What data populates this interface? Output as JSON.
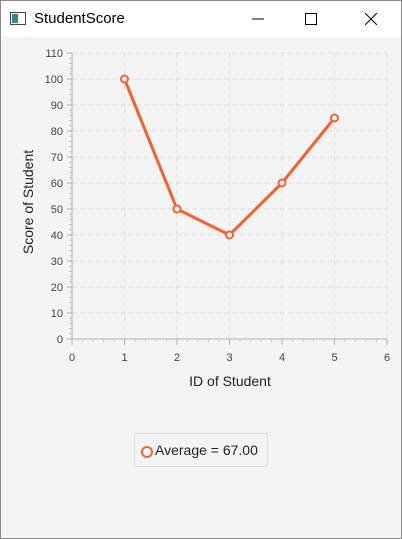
{
  "window": {
    "title": "StudentScore",
    "controls": [
      "minimize",
      "maximize",
      "close"
    ]
  },
  "chart_data": {
    "type": "line",
    "xlabel": "ID of Student",
    "ylabel": "Score of Student",
    "xlim": [
      0,
      6
    ],
    "ylim": [
      0,
      110
    ],
    "x_ticks": [
      "0",
      "1",
      "2",
      "3",
      "4",
      "5",
      "6"
    ],
    "y_ticks": [
      "0",
      "10",
      "20",
      "30",
      "40",
      "50",
      "60",
      "70",
      "80",
      "90",
      "100",
      "110"
    ],
    "grid": true,
    "legend_position": "bottom",
    "series": [
      {
        "name": "Average = 67.00",
        "color": "#f3622d",
        "x": [
          1,
          2,
          3,
          4,
          5
        ],
        "y": [
          100,
          50,
          40,
          60,
          85
        ]
      }
    ]
  }
}
